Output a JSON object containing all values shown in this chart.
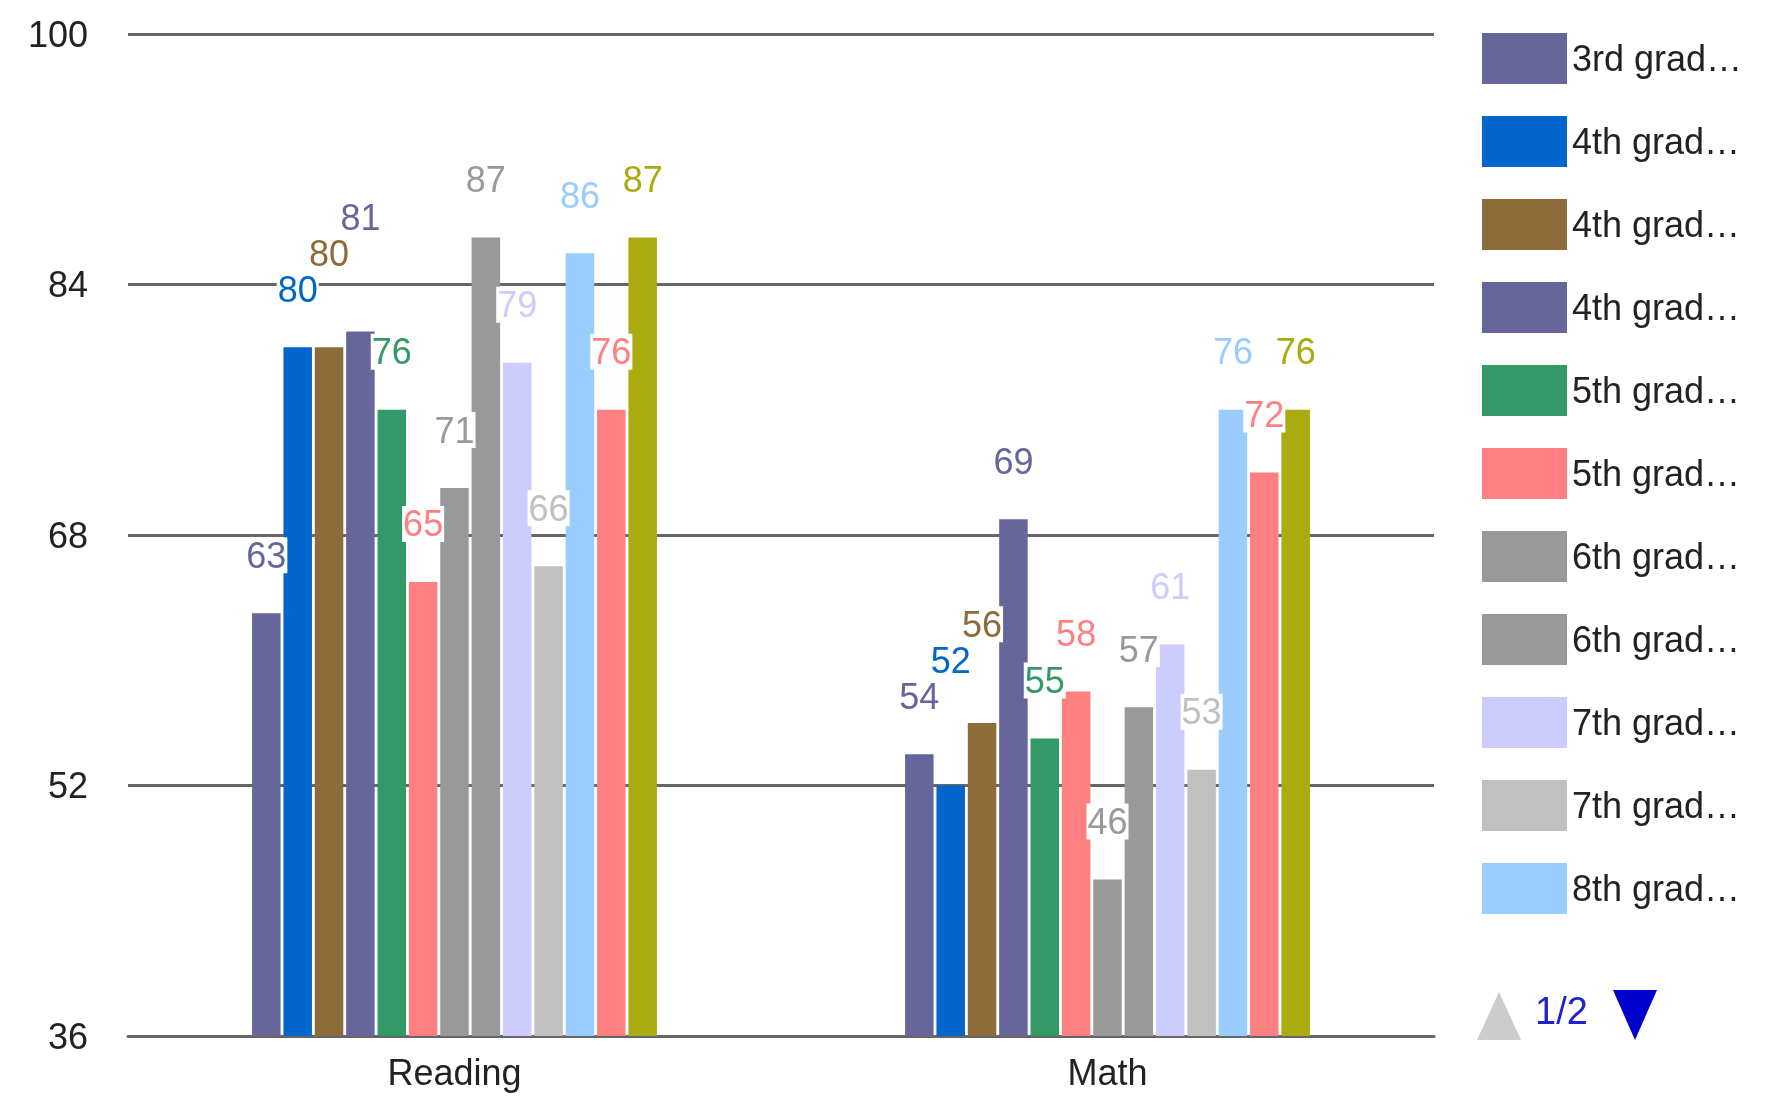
{
  "chart_data": {
    "type": "bar",
    "categories": [
      "Reading",
      "Math"
    ],
    "series": [
      {
        "name": "3rd grad…",
        "color": "#66669a",
        "values": [
          63,
          54
        ]
      },
      {
        "name": "4th grad…",
        "color": "#0066cc",
        "values": [
          80,
          52
        ]
      },
      {
        "name": "4th grad…",
        "color": "#8c6d3a",
        "values": [
          80,
          56
        ]
      },
      {
        "name": "4th grad…",
        "color": "#66669a",
        "values": [
          81,
          69
        ]
      },
      {
        "name": "5th grad…",
        "color": "#339966",
        "values": [
          76,
          55
        ]
      },
      {
        "name": "5th grad…",
        "color": "#ff8080",
        "values": [
          65,
          58
        ]
      },
      {
        "name": "6th grad…",
        "color": "#999999",
        "values": [
          71,
          46
        ]
      },
      {
        "name": "6th grad…",
        "color": "#999999",
        "values": [
          87,
          57
        ]
      },
      {
        "name": "7th grad…",
        "color": "#ccccff",
        "values": [
          79,
          61
        ]
      },
      {
        "name": "7th grad…",
        "color": "#c0c0c0",
        "values": [
          66,
          53
        ]
      },
      {
        "name": "8th grad…",
        "color": "#99ccff",
        "values": [
          86,
          76
        ]
      },
      {
        "color": "#ff8080",
        "values": [
          76,
          72
        ]
      },
      {
        "color": "#aaaa11",
        "values": [
          87,
          76
        ]
      }
    ],
    "ylim": [
      36,
      100
    ],
    "yticks": [
      36,
      52,
      68,
      84,
      100
    ],
    "grid": "y",
    "legend": "right",
    "data_labels": true,
    "annotations": [
      "1/2"
    ]
  }
}
